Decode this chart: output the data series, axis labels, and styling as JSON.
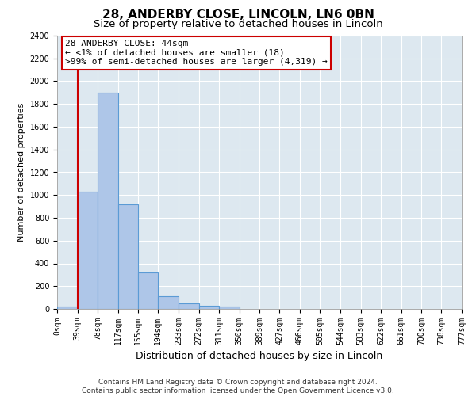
{
  "title": "28, ANDERBY CLOSE, LINCOLN, LN6 0BN",
  "subtitle": "Size of property relative to detached houses in Lincoln",
  "xlabel": "Distribution of detached houses by size in Lincoln",
  "ylabel": "Number of detached properties",
  "bin_edges": [
    0,
    39,
    78,
    117,
    155,
    194,
    233,
    272,
    311,
    350,
    389,
    427,
    466,
    505,
    544,
    583,
    622,
    661,
    700,
    738,
    777
  ],
  "bar_heights": [
    20,
    1030,
    1900,
    920,
    320,
    110,
    50,
    30,
    20,
    0,
    0,
    0,
    0,
    0,
    0,
    0,
    0,
    0,
    0,
    0
  ],
  "bar_color": "#aec6e8",
  "bar_edgecolor": "#5b9bd5",
  "vline_x": 39,
  "vline_color": "#cc0000",
  "ylim": [
    0,
    2400
  ],
  "yticks": [
    0,
    200,
    400,
    600,
    800,
    1000,
    1200,
    1400,
    1600,
    1800,
    2000,
    2200,
    2400
  ],
  "xtick_labels": [
    "0sqm",
    "39sqm",
    "78sqm",
    "117sqm",
    "155sqm",
    "194sqm",
    "233sqm",
    "272sqm",
    "311sqm",
    "350sqm",
    "389sqm",
    "427sqm",
    "466sqm",
    "505sqm",
    "544sqm",
    "583sqm",
    "622sqm",
    "661sqm",
    "700sqm",
    "738sqm",
    "777sqm"
  ],
  "annotation_line1": "28 ANDERBY CLOSE: 44sqm",
  "annotation_line2": "← <1% of detached houses are smaller (18)",
  "annotation_line3": ">99% of semi-detached houses are larger (4,319) →",
  "annotation_box_edgecolor": "#cc0000",
  "background_color": "#dde8f0",
  "footer_line1": "Contains HM Land Registry data © Crown copyright and database right 2024.",
  "footer_line2": "Contains public sector information licensed under the Open Government Licence v3.0.",
  "title_fontsize": 11,
  "subtitle_fontsize": 9.5,
  "xlabel_fontsize": 9,
  "ylabel_fontsize": 8,
  "tick_fontsize": 7,
  "annotation_fontsize": 8,
  "footer_fontsize": 6.5
}
